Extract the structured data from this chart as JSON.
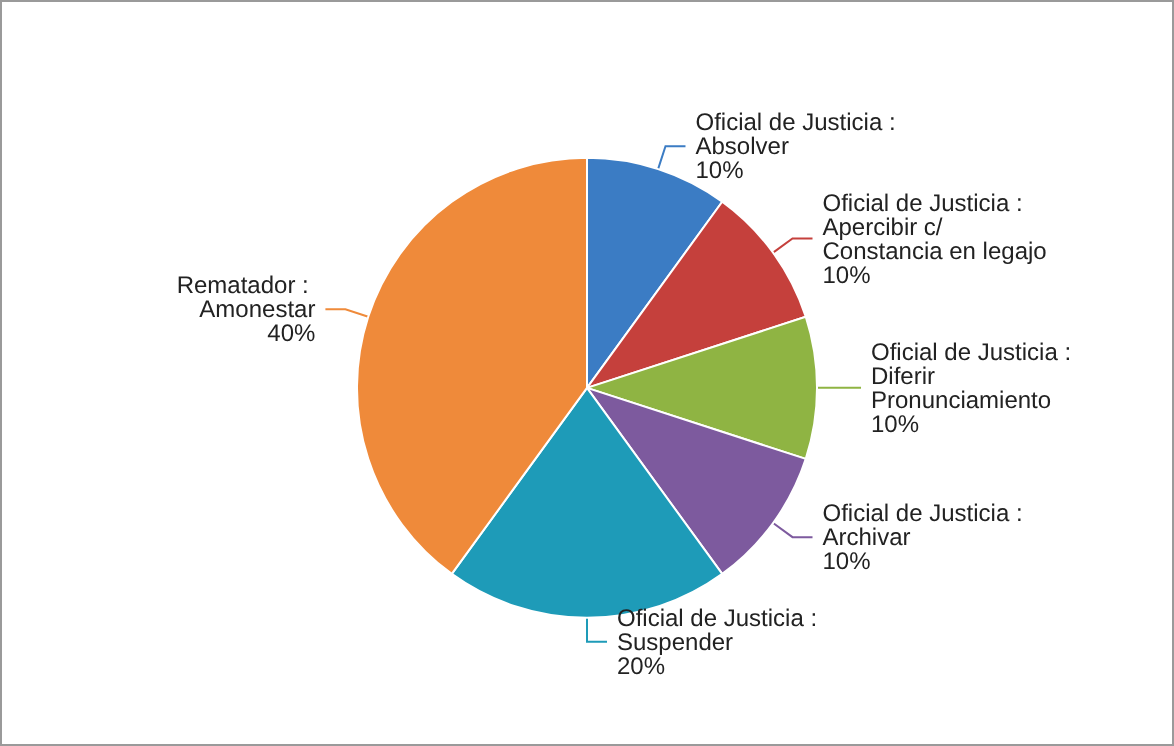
{
  "chart_data": {
    "type": "pie",
    "categories": [
      "Oficial de Justicia : Absolver",
      "Oficial de Justicia : Apercibir c/Constancia en legajo",
      "Oficial de Justicia : Diferir Pronunciamiento",
      "Oficial de Justicia : Archivar",
      "Oficial de Justicia : Suspender",
      "Rematador : Amonestar"
    ],
    "values": [
      10,
      10,
      10,
      10,
      20,
      40
    ],
    "value_labels": [
      "10%",
      "10%",
      "10%",
      "10%",
      "20%",
      "40%"
    ],
    "colors": [
      "#3b7cc4",
      "#c5403c",
      "#8fb443",
      "#7d5a9e",
      "#1e9bb8",
      "#ef8a3a"
    ],
    "legend": false
  }
}
